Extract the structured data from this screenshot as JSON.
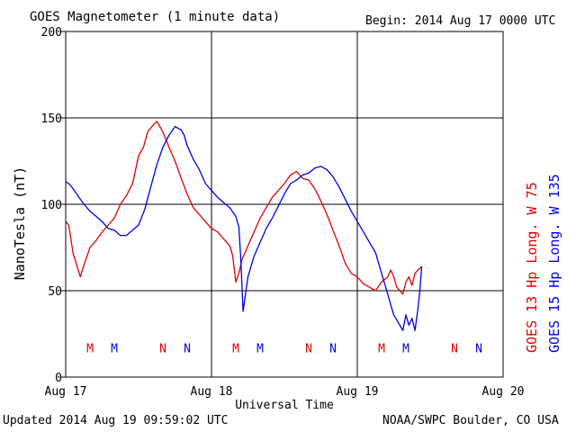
{
  "header": {
    "title": "GOES Magnetometer (1 minute data)",
    "begin": "Begin:  2014 Aug 17 0000 UTC"
  },
  "footer": {
    "updated": "Updated 2014 Aug 19 09:59:02 UTC",
    "credit": "NOAA/SWPC Boulder, CO USA"
  },
  "colors": {
    "goes13": "#e00000",
    "goes15": "#0000e0",
    "grid": "#000000"
  },
  "chart_data": {
    "type": "line",
    "title": "GOES Magnetometer (1 minute data)",
    "xlabel": "Universal Time",
    "ylabel": "NanoTesla (nT)",
    "ylim": [
      0,
      200
    ],
    "xlim": [
      0,
      72
    ],
    "x_unit": "hours since 2014 Aug 17 0000 UTC",
    "grid": true,
    "legend_position": "right-side vertical",
    "y_ticks": [
      0,
      50,
      100,
      150,
      200
    ],
    "x_ticks": [
      {
        "x": 0,
        "label": "Aug 17"
      },
      {
        "x": 24,
        "label": "Aug 18"
      },
      {
        "x": 48,
        "label": "Aug 19"
      },
      {
        "x": 72,
        "label": "Aug 20"
      }
    ],
    "series": [
      {
        "name": "GOES 13 Hp  Long. W 75",
        "color": "#e00000",
        "x": [
          0,
          0.5,
          1.2,
          1.7,
          2.4,
          3.0,
          4.0,
          5.0,
          6.0,
          7.0,
          8.0,
          9.0,
          10.0,
          11.0,
          12.0,
          12.8,
          13.5,
          14.2,
          15.0,
          16.0,
          17.0,
          18.0,
          19.0,
          20.0,
          21.0,
          22.0,
          23.0,
          24.0,
          25.0,
          26.0,
          27.0,
          27.5,
          28.0,
          28.5,
          29.0,
          30.0,
          31.0,
          32.0,
          33.0,
          34.0,
          35.0,
          36.0,
          37.0,
          38.0,
          39.0,
          40.0,
          41.0,
          42.0,
          43.0,
          44.0,
          45.0,
          46.0,
          47.0,
          48.0,
          49.0,
          50.0,
          51.0,
          52.0,
          53.0,
          53.5,
          54.0,
          54.5,
          55.0,
          55.5,
          56.0,
          56.5,
          57.0,
          57.5,
          58.0,
          58.3,
          58.6
        ],
        "y": [
          90,
          88,
          72,
          66,
          58,
          65,
          75,
          79,
          84,
          88,
          92,
          100,
          105,
          112,
          128,
          133,
          142,
          145,
          148,
          142,
          133,
          125,
          115,
          106,
          98,
          94,
          90,
          86,
          84,
          80,
          76,
          70,
          55,
          60,
          68,
          76,
          84,
          92,
          98,
          104,
          108,
          112,
          117,
          119,
          115,
          114,
          109,
          102,
          94,
          85,
          76,
          66,
          60,
          58,
          54,
          52,
          50,
          55,
          58,
          62,
          58,
          52,
          50,
          48,
          55,
          58,
          53,
          60,
          62,
          63,
          64
        ]
      },
      {
        "name": "GOES 15 Hp  Long. W 135",
        "color": "#0000e0",
        "x": [
          0,
          0.5,
          1.0,
          2.0,
          3.0,
          4.0,
          5.0,
          6.0,
          7.0,
          8.0,
          9.0,
          10.0,
          11.0,
          12.0,
          13.0,
          14.0,
          15.0,
          16.0,
          17.0,
          18.0,
          19.0,
          19.5,
          20.0,
          21.0,
          22.0,
          23.0,
          24.0,
          25.0,
          26.0,
          27.0,
          28.0,
          28.5,
          28.8,
          29.2,
          30.0,
          31.0,
          32.0,
          33.0,
          34.0,
          35.0,
          36.0,
          37.0,
          38.0,
          39.0,
          40.0,
          41.0,
          42.0,
          43.0,
          44.0,
          45.0,
          46.0,
          47.0,
          48.0,
          49.0,
          50.0,
          51.0,
          52.0,
          53.0,
          53.5,
          54.0,
          54.5,
          55.0,
          55.5,
          56.0,
          56.5,
          57.0,
          57.5,
          58.0,
          58.3,
          58.6
        ],
        "y": [
          113,
          112,
          110,
          105,
          100,
          96,
          93,
          90,
          86,
          85,
          82,
          82,
          85,
          88,
          97,
          110,
          123,
          133,
          140,
          145,
          143,
          140,
          134,
          126,
          120,
          112,
          108,
          104,
          101,
          98,
          93,
          87,
          70,
          38,
          58,
          70,
          78,
          86,
          92,
          99,
          106,
          112,
          114,
          117,
          118,
          121,
          122,
          120,
          116,
          110,
          103,
          96,
          90,
          84,
          78,
          72,
          60,
          48,
          42,
          36,
          33,
          30,
          27,
          36,
          30,
          34,
          27,
          40,
          50,
          64
        ]
      }
    ],
    "annotations": [
      {
        "text": "M",
        "x": 4.0,
        "color": "#e00000"
      },
      {
        "text": "M",
        "x": 8.0,
        "color": "#0000e0"
      },
      {
        "text": "N",
        "x": 16.0,
        "color": "#e00000"
      },
      {
        "text": "N",
        "x": 20.0,
        "color": "#0000e0"
      },
      {
        "text": "M",
        "x": 28.0,
        "color": "#e00000"
      },
      {
        "text": "M",
        "x": 32.0,
        "color": "#0000e0"
      },
      {
        "text": "N",
        "x": 40.0,
        "color": "#e00000"
      },
      {
        "text": "N",
        "x": 44.0,
        "color": "#0000e0"
      },
      {
        "text": "M",
        "x": 52.0,
        "color": "#e00000"
      },
      {
        "text": "M",
        "x": 56.0,
        "color": "#0000e0"
      },
      {
        "text": "N",
        "x": 64.0,
        "color": "#e00000"
      },
      {
        "text": "N",
        "x": 68.0,
        "color": "#0000e0"
      }
    ],
    "annotation_y": 17
  }
}
